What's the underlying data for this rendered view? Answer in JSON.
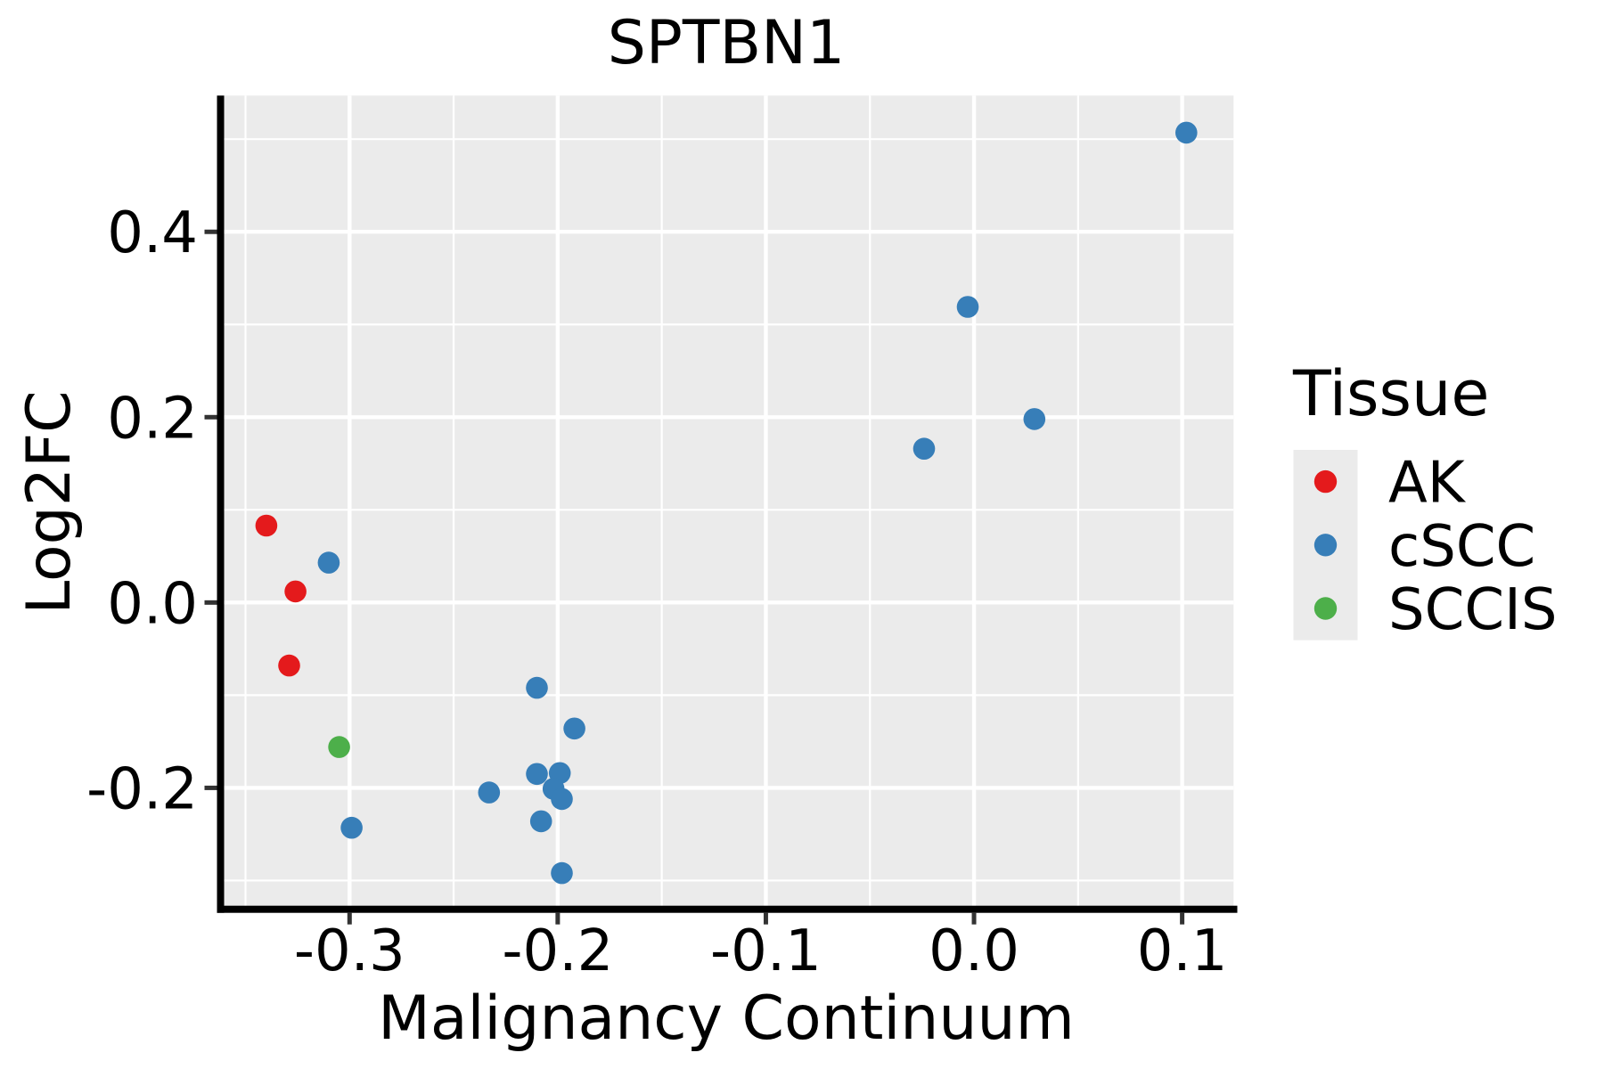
{
  "colors": {
    "background": "#FFFFFF",
    "panel_background": "#EBEBEB",
    "grid_major": "#FFFFFF",
    "grid_minor": "#FFFFFF",
    "axis_spine": "#000000",
    "tick_mark": "#333333",
    "text": "#000000",
    "legend_key_background": "#EBEBEB",
    "ak_red": "#E41A1C",
    "cscc_blue": "#377EB8",
    "sccis_green": "#4DAF4A"
  },
  "chart_data": {
    "type": "scatter",
    "title": "SPTBN1",
    "xlabel": "Malignancy Continuum",
    "ylabel": "Log2FC",
    "xlim": [
      -0.3622,
      0.1247
    ],
    "ylim": [
      -0.331,
      0.547
    ],
    "x_ticks": {
      "values": [
        -0.3,
        -0.2,
        -0.1,
        0.0,
        0.1
      ],
      "labels": [
        "-0.3",
        "-0.2",
        "-0.1",
        "0.0",
        "0.1"
      ]
    },
    "y_ticks": {
      "values": [
        -0.2,
        0.0,
        0.2,
        0.4
      ],
      "labels": [
        "-0.2",
        "0.0",
        "0.2",
        "0.4"
      ]
    },
    "x_minor_ticks": [
      -0.35,
      -0.25,
      -0.15,
      -0.05,
      0.05
    ],
    "y_minor_ticks": [
      -0.3,
      -0.1,
      0.1,
      0.3,
      0.5
    ],
    "grid": "white major and minor gridlines on gray panel",
    "legend": {
      "title": "Tissue",
      "position": "right"
    },
    "series": [
      {
        "name": "AK",
        "color": "#E41A1C",
        "points": [
          [
            -0.34,
            0.083
          ],
          [
            -0.326,
            0.012
          ],
          [
            -0.329,
            -0.068
          ]
        ]
      },
      {
        "name": "cSCC",
        "color": "#377EB8",
        "points": [
          [
            0.102,
            0.507
          ],
          [
            -0.003,
            0.319
          ],
          [
            0.029,
            0.198
          ],
          [
            -0.024,
            0.166
          ],
          [
            -0.31,
            0.043
          ],
          [
            -0.21,
            -0.092
          ],
          [
            -0.192,
            -0.136
          ],
          [
            -0.233,
            -0.205
          ],
          [
            -0.21,
            -0.185
          ],
          [
            -0.199,
            -0.184
          ],
          [
            -0.202,
            -0.201
          ],
          [
            -0.198,
            -0.212
          ],
          [
            -0.208,
            -0.236
          ],
          [
            -0.299,
            -0.243
          ],
          [
            -0.198,
            -0.292
          ]
        ]
      },
      {
        "name": "SCCIS",
        "color": "#4DAF4A",
        "points": [
          [
            -0.305,
            -0.156
          ]
        ]
      }
    ]
  }
}
